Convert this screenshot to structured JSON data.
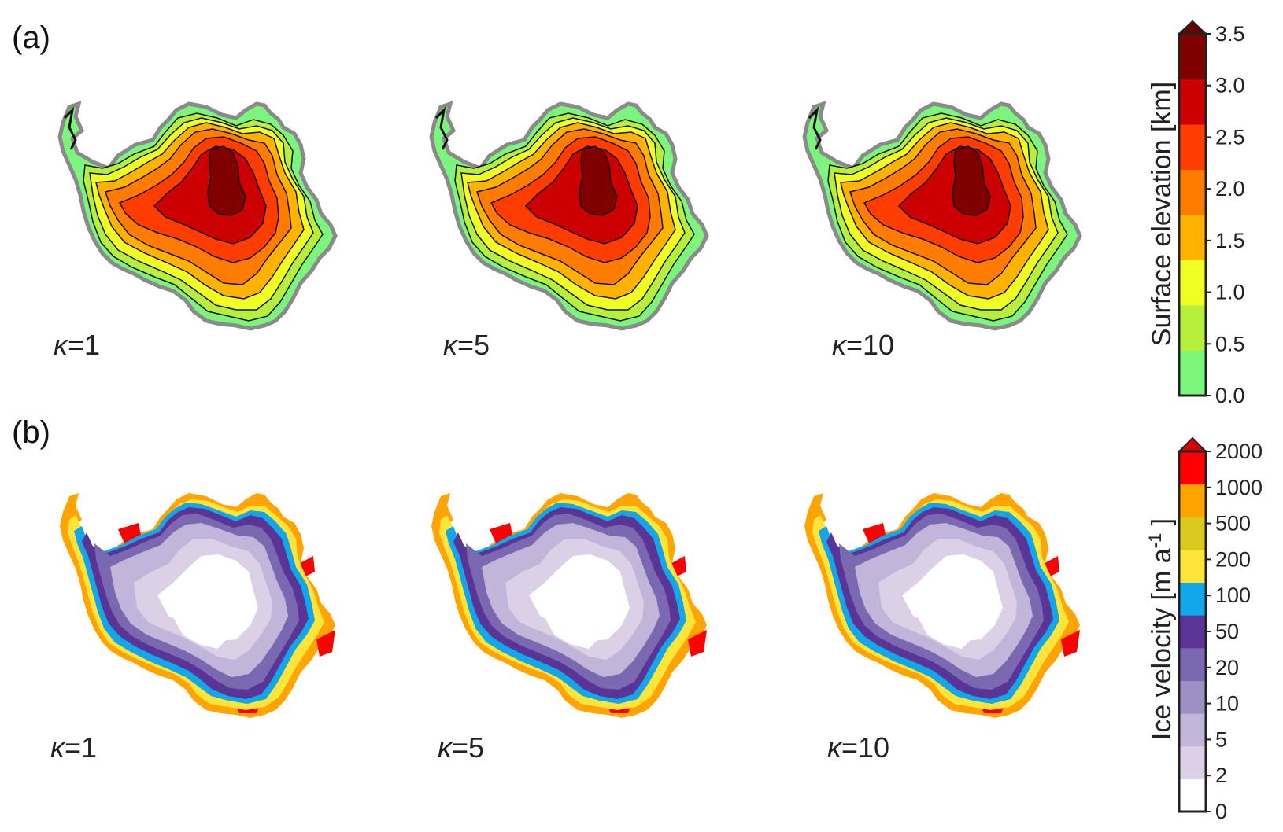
{
  "panels": {
    "a": {
      "label": "(a)"
    },
    "b": {
      "label": "(b)"
    }
  },
  "kappa": {
    "symbol": "κ",
    "values": [
      "=1",
      "=5",
      "=10"
    ]
  },
  "colorbar_elevation": {
    "title": "Surface elevation [km]",
    "ticks": [
      "0.0",
      "0.5",
      "1.0",
      "1.5",
      "2.0",
      "2.5",
      "3.0",
      "3.5"
    ],
    "colors": [
      "#7cf57c",
      "#b7f03c",
      "#efff24",
      "#ffb300",
      "#ff7c00",
      "#ff3d00",
      "#cc0000",
      "#800000"
    ],
    "extend_color": "#6b0000"
  },
  "colorbar_velocity": {
    "title_main": "Ice velocity [m a",
    "title_sup": "-1",
    "title_end": " ]",
    "ticks": [
      "0",
      "2",
      "5",
      "10",
      "20",
      "50",
      "100",
      "200",
      "500",
      "1000",
      "2000"
    ],
    "colors": [
      "#ffffff",
      "#dcd0e6",
      "#bfb6d9",
      "#9d90c5",
      "#7a68b0",
      "#5a3596",
      "#12a6ea",
      "#ffe53a",
      "#d9c81e",
      "#ffa400",
      "#ff0000"
    ],
    "extend_color": "#d90000"
  }
}
